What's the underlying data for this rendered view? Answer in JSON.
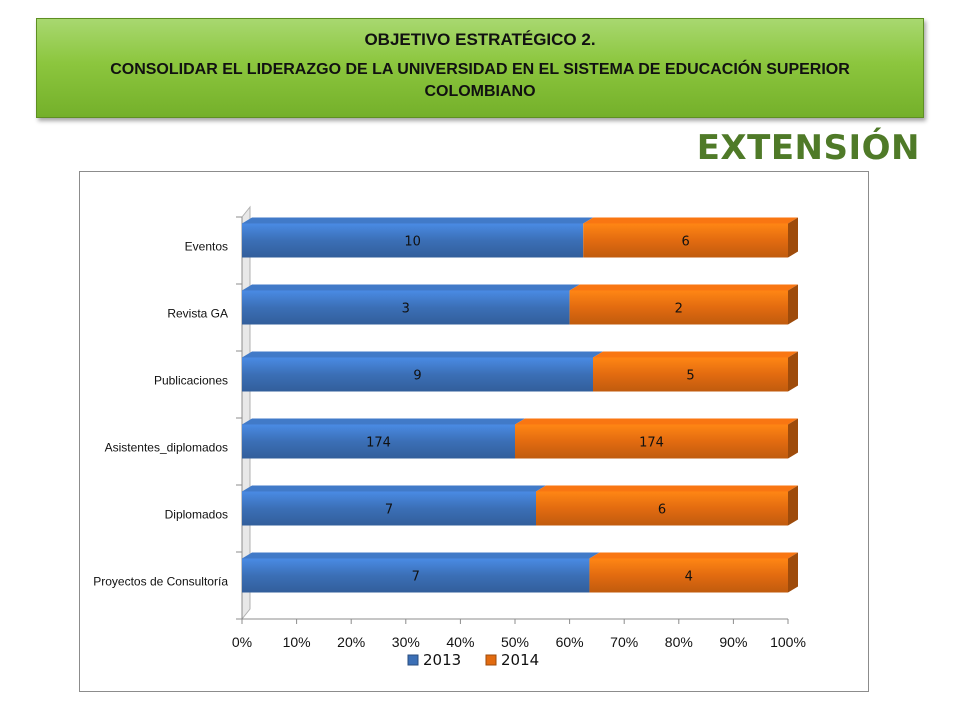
{
  "header": {
    "line1": "OBJETIVO ESTRATÉGICO 2.",
    "line2": "CONSOLIDAR EL LIDERAZGO DE LA UNIVERSIDAD EN EL SISTEMA DE EDUCACIÓN SUPERIOR COLOMBIANO",
    "color": "#8cc63e"
  },
  "section_title": "EXTENSIÓN",
  "section_title_color": "#4f7a28",
  "chart_data": {
    "type": "bar",
    "orientation": "horizontal",
    "stacking": "percent",
    "categories": [
      "Eventos",
      "Revista GA",
      "Publicaciones",
      "Asistentes_diplomados",
      "Diplomados",
      "Proyectos de Consultoría"
    ],
    "series": [
      {
        "name": "2013",
        "values": [
          10,
          3,
          9,
          174,
          7,
          7
        ],
        "color": "#3b6fb6"
      },
      {
        "name": "2014",
        "values": [
          6,
          2,
          5,
          174,
          6,
          4
        ],
        "color": "#e26b10"
      }
    ],
    "x_ticks": [
      "0%",
      "10%",
      "20%",
      "30%",
      "40%",
      "50%",
      "60%",
      "70%",
      "80%",
      "90%",
      "100%"
    ],
    "xlim": [
      0,
      100
    ],
    "legend_position": "bottom",
    "data_labels": true,
    "grid": false
  }
}
